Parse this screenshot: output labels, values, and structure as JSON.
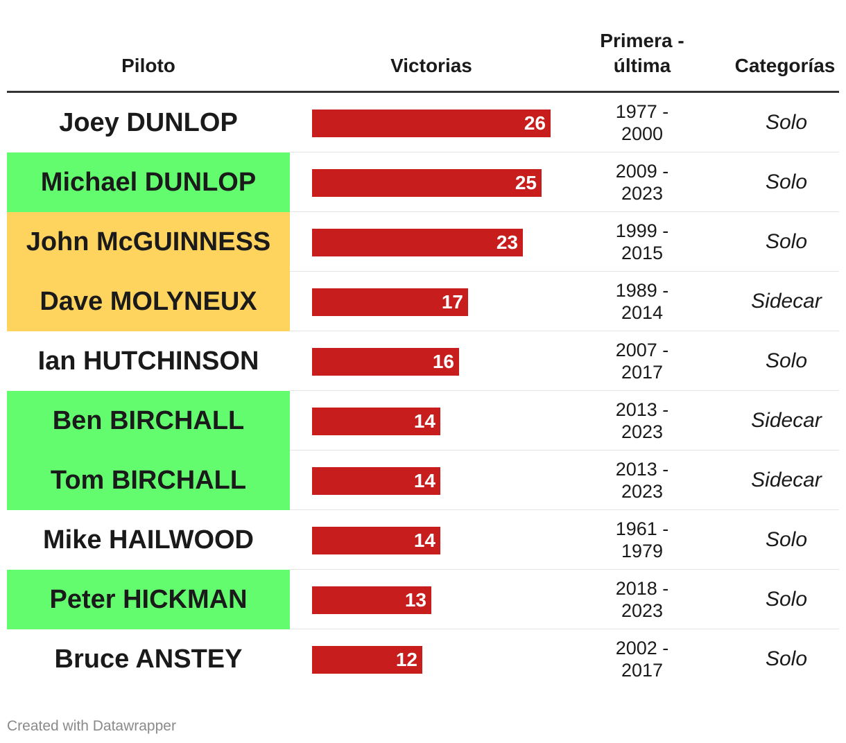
{
  "chart_data": {
    "type": "table",
    "columns": [
      "Piloto",
      "Victorias",
      "Primera - última",
      "Categorías"
    ],
    "max_value": 26,
    "bar_color": "#c71e1d",
    "rows": [
      {
        "name": "Joey DUNLOP",
        "wins": 26,
        "first": "1977 -",
        "last": "2000",
        "category": "Solo",
        "highlight": "#ffffff"
      },
      {
        "name": "Michael DUNLOP",
        "wins": 25,
        "first": "2009 -",
        "last": "2023",
        "category": "Solo",
        "highlight": "#62fc6e"
      },
      {
        "name": "John McGUINNESS",
        "wins": 23,
        "first": "1999 -",
        "last": "2015",
        "category": "Solo",
        "highlight": "#fed35e"
      },
      {
        "name": "Dave MOLYNEUX",
        "wins": 17,
        "first": "1989 -",
        "last": "2014",
        "category": "Sidecar",
        "highlight": "#fed35e"
      },
      {
        "name": "Ian HUTCHINSON",
        "wins": 16,
        "first": "2007 -",
        "last": "2017",
        "category": "Solo",
        "highlight": "#ffffff"
      },
      {
        "name": "Ben BIRCHALL",
        "wins": 14,
        "first": "2013 -",
        "last": "2023",
        "category": "Sidecar",
        "highlight": "#62fc6e"
      },
      {
        "name": "Tom BIRCHALL",
        "wins": 14,
        "first": "2013 -",
        "last": "2023",
        "category": "Sidecar",
        "highlight": "#62fc6e"
      },
      {
        "name": "Mike HAILWOOD",
        "wins": 14,
        "first": "1961 -",
        "last": "1979",
        "category": "Solo",
        "highlight": "#ffffff"
      },
      {
        "name": "Peter HICKMAN",
        "wins": 13,
        "first": "2018 -",
        "last": "2023",
        "category": "Solo",
        "highlight": "#62fc6e"
      },
      {
        "name": "Bruce ANSTEY",
        "wins": 12,
        "first": "2002 -",
        "last": "2017",
        "category": "Solo",
        "highlight": "#ffffff"
      }
    ]
  },
  "header": {
    "piloto": "Piloto",
    "victorias": "Victorias",
    "years_line1": "Primera -",
    "years_line2": "última",
    "categorias": "Categorías"
  },
  "footer": {
    "credit": "Created with Datawrapper"
  }
}
